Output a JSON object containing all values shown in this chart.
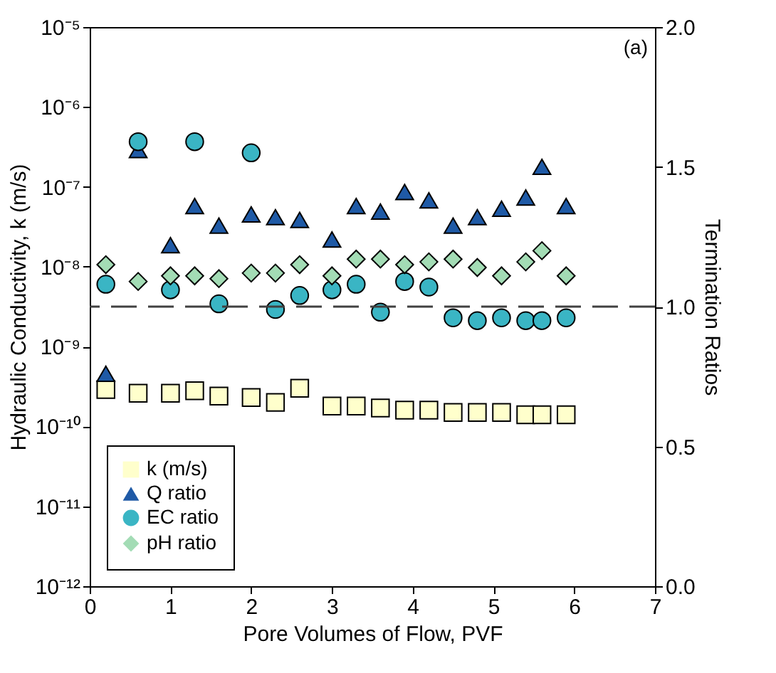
{
  "chart_data": {
    "type": "scatter",
    "xlabel": "Pore Volumes of Flow, PVF",
    "ylabel": "Hydraulic Conductivity, k (m/s)",
    "y2label": "Termination Ratios",
    "x": [
      0.2,
      0.6,
      1.0,
      1.3,
      1.6,
      2.0,
      2.3,
      2.6,
      3.0,
      3.3,
      3.6,
      3.9,
      4.2,
      4.5,
      4.8,
      5.1,
      5.4,
      5.6,
      5.9
    ],
    "xlim": [
      0,
      7
    ],
    "xticks": [
      0,
      1,
      2,
      3,
      4,
      5,
      6,
      7
    ],
    "log": "y",
    "ylim": [
      1e-12,
      1e-05
    ],
    "yticks": [
      {
        "value": 1e-12,
        "label": "10⁻¹²"
      },
      {
        "value": 1e-11,
        "label": "10⁻¹¹"
      },
      {
        "value": 1e-10,
        "label": "10⁻¹⁰"
      },
      {
        "value": 1e-09,
        "label": "10⁻⁹"
      },
      {
        "value": 1e-08,
        "label": "10⁻⁸"
      },
      {
        "value": 1e-07,
        "label": "10⁻⁷"
      },
      {
        "value": 1e-06,
        "label": "10⁻⁶"
      },
      {
        "value": 1e-05,
        "label": "10⁻⁵"
      }
    ],
    "y2lim": [
      0,
      2
    ],
    "y2ticks": [
      {
        "value": 0,
        "label": "0.0"
      },
      {
        "value": 0.5,
        "label": "0.5"
      },
      {
        "value": 1,
        "label": "1.0"
      },
      {
        "value": 1.5,
        "label": "1.5"
      },
      {
        "value": 2,
        "label": "2.0"
      }
    ],
    "series": [
      {
        "name": "k (m/s)",
        "color": "#ffffcc",
        "marker": "square",
        "axis": "y",
        "values": [
          2.9e-10,
          2.6e-10,
          2.6e-10,
          2.8e-10,
          2.4e-10,
          2.3e-10,
          2e-10,
          3e-10,
          1.8e-10,
          1.8e-10,
          1.7e-10,
          1.6e-10,
          1.6e-10,
          1.5e-10,
          1.5e-10,
          1.5e-10,
          1.4e-10,
          1.4e-10,
          1.4e-10
        ]
      },
      {
        "name": "Q ratio",
        "color": "#1f5aa6",
        "marker": "triangle",
        "axis": "y2",
        "values": [
          0.76,
          1.56,
          1.22,
          1.36,
          1.29,
          1.33,
          1.32,
          1.31,
          1.24,
          1.36,
          1.34,
          1.41,
          1.38,
          1.29,
          1.32,
          1.35,
          1.39,
          1.5,
          1.36
        ]
      },
      {
        "name": "EC ratio",
        "color": "#3ab5c4",
        "marker": "circle",
        "axis": "y2",
        "values": [
          1.08,
          1.59,
          1.06,
          1.59,
          1.01,
          1.55,
          0.99,
          1.04,
          1.06,
          1.08,
          0.98,
          1.09,
          1.07,
          0.96,
          0.95,
          0.96,
          0.95,
          0.95,
          0.96
        ]
      },
      {
        "name": "pH ratio",
        "color": "#a3dcb5",
        "marker": "diamond",
        "axis": "y2",
        "values": [
          1.15,
          1.09,
          1.11,
          1.11,
          1.1,
          1.12,
          1.12,
          1.15,
          1.11,
          1.17,
          1.17,
          1.15,
          1.16,
          1.17,
          1.14,
          1.11,
          1.16,
          1.2,
          1.11
        ]
      }
    ],
    "ref_lines": [
      {
        "axis": "y2",
        "value": 1.0,
        "color": "#404040",
        "line_style": "dashed"
      }
    ],
    "annotations": [
      "(a)"
    ],
    "legend": "bottom left",
    "grid": false
  }
}
